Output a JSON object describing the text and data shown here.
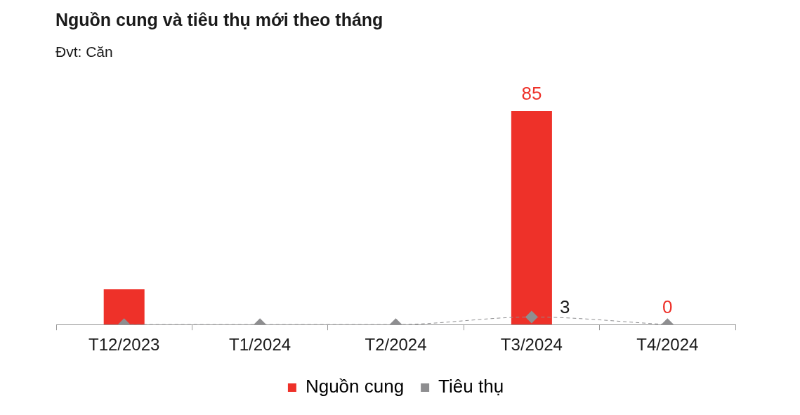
{
  "chart_data": {
    "type": "bar",
    "title": "Nguồn cung và tiêu thụ mới theo tháng",
    "subtitle": "Đvt: Căn",
    "categories": [
      "T12/2023",
      "T1/2024",
      "T2/2024",
      "T3/2024",
      "T4/2024"
    ],
    "series": [
      {
        "name": "Nguồn cung",
        "color": "#ee3129",
        "values": [
          14,
          0,
          0,
          85,
          0
        ],
        "value_labels": [
          null,
          null,
          null,
          "85",
          "0"
        ]
      },
      {
        "name": "Tiêu thụ",
        "type": "line",
        "color": "#8e8e90",
        "values": [
          0,
          0,
          0,
          3,
          0
        ],
        "value_labels": [
          null,
          null,
          null,
          "3",
          null
        ],
        "marker": "diamond",
        "line_style": "dashed"
      }
    ],
    "legend": "bottom",
    "grid": false
  }
}
